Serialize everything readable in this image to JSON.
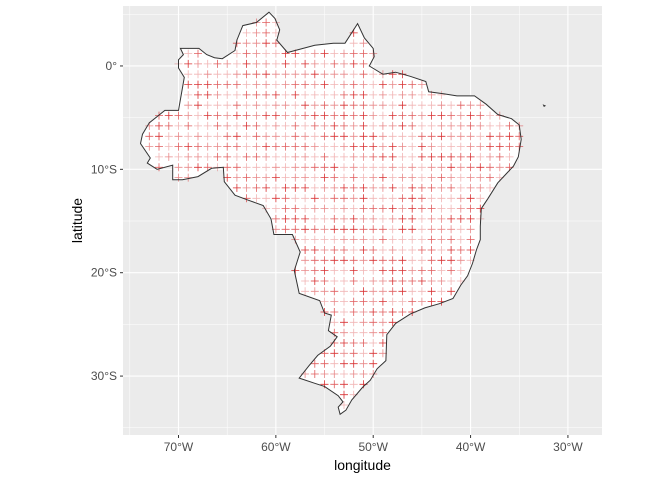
{
  "chart_data": {
    "type": "scatter",
    "title": "",
    "xlabel": "longitude",
    "ylabel": "latitude",
    "xlim": [
      -75.7,
      -26.5
    ],
    "ylim": [
      -35.7,
      5.8
    ],
    "grid": true,
    "legend": "none",
    "x_ticks": [
      {
        "value": -70,
        "label": "70°W"
      },
      {
        "value": -60,
        "label": "60°W"
      },
      {
        "value": -50,
        "label": "50°W"
      },
      {
        "value": -40,
        "label": "40°W"
      },
      {
        "value": -30,
        "label": "30°W"
      }
    ],
    "y_ticks": [
      {
        "value": 0,
        "label": "0°"
      },
      {
        "value": -10,
        "label": "10°S"
      },
      {
        "value": -20,
        "label": "20°S"
      },
      {
        "value": -30,
        "label": "30°S"
      }
    ],
    "sample_grid": {
      "marker": "plus",
      "lon_start": -73.0,
      "lat_start": 4.2,
      "spacing_deg": 1.0
    },
    "boundary_lonlat": [
      [
        -60.7,
        5.2
      ],
      [
        -60.1,
        4.6
      ],
      [
        -59.6,
        3.5
      ],
      [
        -59.9,
        2.5
      ],
      [
        -58.8,
        1.3
      ],
      [
        -57.2,
        1.7
      ],
      [
        -56.0,
        2.0
      ],
      [
        -54.1,
        2.2
      ],
      [
        -52.9,
        2.2
      ],
      [
        -51.6,
        4.1
      ],
      [
        -50.9,
        2.7
      ],
      [
        -50.0,
        1.7
      ],
      [
        -49.9,
        0.9
      ],
      [
        -50.4,
        0.0
      ],
      [
        -49.0,
        -0.8
      ],
      [
        -47.7,
        -0.6
      ],
      [
        -46.2,
        -1.0
      ],
      [
        -44.6,
        -1.5
      ],
      [
        -44.3,
        -2.5
      ],
      [
        -42.7,
        -2.7
      ],
      [
        -41.4,
        -2.9
      ],
      [
        -39.6,
        -2.9
      ],
      [
        -38.4,
        -3.7
      ],
      [
        -37.2,
        -4.7
      ],
      [
        -35.8,
        -5.1
      ],
      [
        -35.0,
        -5.7
      ],
      [
        -34.8,
        -7.1
      ],
      [
        -35.1,
        -8.8
      ],
      [
        -35.6,
        -9.7
      ],
      [
        -36.4,
        -10.5
      ],
      [
        -37.2,
        -11.3
      ],
      [
        -38.2,
        -12.8
      ],
      [
        -38.9,
        -13.8
      ],
      [
        -39.0,
        -15.5
      ],
      [
        -39.0,
        -16.8
      ],
      [
        -39.4,
        -17.8
      ],
      [
        -39.8,
        -19.1
      ],
      [
        -40.3,
        -20.3
      ],
      [
        -41.0,
        -21.2
      ],
      [
        -41.8,
        -22.5
      ],
      [
        -43.2,
        -23.0
      ],
      [
        -44.7,
        -23.4
      ],
      [
        -46.2,
        -24.0
      ],
      [
        -47.7,
        -24.9
      ],
      [
        -48.6,
        -26.0
      ],
      [
        -48.7,
        -28.5
      ],
      [
        -49.6,
        -29.3
      ],
      [
        -50.3,
        -30.4
      ],
      [
        -51.1,
        -31.1
      ],
      [
        -52.2,
        -32.3
      ],
      [
        -52.8,
        -33.3
      ],
      [
        -53.4,
        -33.7
      ],
      [
        -53.6,
        -33.0
      ],
      [
        -53.1,
        -32.5
      ],
      [
        -53.6,
        -31.9
      ],
      [
        -55.0,
        -31.0
      ],
      [
        -56.0,
        -30.7
      ],
      [
        -57.6,
        -30.2
      ],
      [
        -56.6,
        -29.0
      ],
      [
        -55.7,
        -28.0
      ],
      [
        -54.4,
        -27.1
      ],
      [
        -53.7,
        -26.2
      ],
      [
        -54.6,
        -25.6
      ],
      [
        -54.3,
        -24.1
      ],
      [
        -55.0,
        -23.9
      ],
      [
        -55.5,
        -22.7
      ],
      [
        -57.6,
        -22.0
      ],
      [
        -57.9,
        -20.7
      ],
      [
        -58.1,
        -19.8
      ],
      [
        -57.5,
        -18.0
      ],
      [
        -58.3,
        -16.3
      ],
      [
        -60.2,
        -16.3
      ],
      [
        -60.5,
        -14.8
      ],
      [
        -61.3,
        -13.5
      ],
      [
        -62.8,
        -13.0
      ],
      [
        -64.2,
        -12.5
      ],
      [
        -65.3,
        -11.2
      ],
      [
        -65.4,
        -9.8
      ],
      [
        -66.6,
        -9.9
      ],
      [
        -68.0,
        -10.7
      ],
      [
        -69.6,
        -11.0
      ],
      [
        -70.6,
        -11.0
      ],
      [
        -70.6,
        -9.6
      ],
      [
        -72.2,
        -10.0
      ],
      [
        -73.2,
        -9.4
      ],
      [
        -72.9,
        -8.9
      ],
      [
        -73.9,
        -7.5
      ],
      [
        -73.7,
        -6.6
      ],
      [
        -73.0,
        -5.5
      ],
      [
        -71.4,
        -4.3
      ],
      [
        -70.0,
        -4.3
      ],
      [
        -69.4,
        -1.1
      ],
      [
        -70.0,
        -0.2
      ],
      [
        -70.0,
        0.6
      ],
      [
        -69.5,
        1.1
      ],
      [
        -69.8,
        1.7
      ],
      [
        -67.9,
        1.7
      ],
      [
        -67.1,
        1.1
      ],
      [
        -66.3,
        0.8
      ],
      [
        -65.5,
        0.7
      ],
      [
        -64.2,
        1.5
      ],
      [
        -64.0,
        2.5
      ],
      [
        -63.4,
        3.9
      ],
      [
        -62.0,
        4.2
      ],
      [
        -60.7,
        5.2
      ]
    ],
    "islands_lonlat": [
      [
        [
          -32.5,
          -3.8
        ],
        [
          -32.35,
          -3.85
        ],
        [
          -32.45,
          -3.9
        ]
      ]
    ]
  }
}
